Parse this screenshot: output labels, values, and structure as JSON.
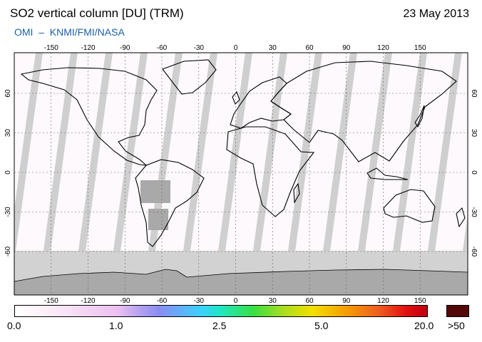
{
  "title": "SO2 vertical column [DU] (TRM)",
  "date": "23 May 2013",
  "subtitle": "OMI  –  KNMI/FMI/NASA",
  "lon_ticks": [
    "-150",
    "-120",
    "-90",
    "-60",
    "-30",
    "0",
    "30",
    "60",
    "90",
    "120",
    "150"
  ],
  "lat_ticks": [
    "60",
    "30",
    "0",
    "-30",
    "-60"
  ],
  "colorbar": {
    "labels": [
      "0.0",
      "1.0",
      "2.5",
      "5.0",
      "20.0"
    ],
    "overflow_label": ">50",
    "overflow_color": "#550808"
  },
  "colors": {
    "ocean": "#ffffff",
    "no_data": "#c8c8c8",
    "coastline": "#000000",
    "grid": "#555555",
    "title_blue": "#1a5ea8"
  }
}
